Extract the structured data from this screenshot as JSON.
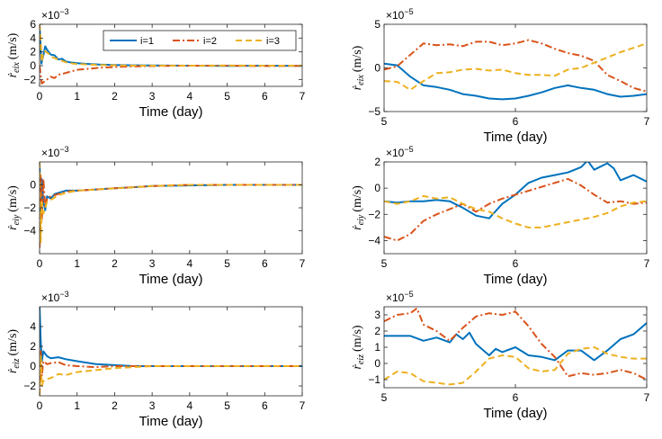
{
  "colors": {
    "i1": "#0072BD",
    "i2": "#D95319",
    "i3": "#EDB120"
  },
  "legend": {
    "position": "top-right",
    "series": [
      "i=1",
      "i=2",
      "i=3"
    ]
  },
  "chart_data": [
    {
      "id": "p1",
      "type": "line",
      "xlabel": "Time (day)",
      "ylabel_main": "ṙ",
      "ylabel_sub": "eix",
      "ylabel_unit": "(m/s)",
      "multiplier": "×10",
      "multiplier_exp": "−3",
      "xlim": [
        0,
        7
      ],
      "ylim": [
        -3,
        6
      ],
      "xticks": [
        0,
        1,
        2,
        3,
        4,
        5,
        6,
        7
      ],
      "xtick_labels": [
        "0",
        "1",
        "2",
        "3",
        "4",
        "5",
        "6",
        "7"
      ],
      "yticks": [
        -2,
        0,
        2,
        4,
        6
      ],
      "ytick_labels": [
        "−2",
        "0",
        "2",
        "4",
        "6"
      ],
      "series": [
        {
          "name": "i=1",
          "style": "solid",
          "x": [
            0,
            0.05,
            0.1,
            0.15,
            0.2,
            0.3,
            0.4,
            0.5,
            0.6,
            0.7,
            0.8,
            1.0,
            1.3,
            1.6,
            2.0,
            2.5,
            3,
            4,
            5,
            6,
            7
          ],
          "y": [
            6,
            0.3,
            1.5,
            2.8,
            2.3,
            1.6,
            1.5,
            0.9,
            1.0,
            0.6,
            0.5,
            0.35,
            0.25,
            0.15,
            0.1,
            0.05,
            0.02,
            0.0,
            -0.02,
            0.0,
            -0.03
          ]
        },
        {
          "name": "i=2",
          "style": "dashdot",
          "x": [
            0,
            0.03,
            0.06,
            0.1,
            0.2,
            0.3,
            0.4,
            0.5,
            0.6,
            0.8,
            1.0,
            1.3,
            1.6,
            2.0,
            2.5,
            3,
            4,
            5,
            6,
            7
          ],
          "y": [
            0,
            -1.5,
            -2.6,
            -2.4,
            -2.0,
            -1.6,
            -1.8,
            -1.3,
            -1.2,
            -0.9,
            -0.6,
            -0.45,
            -0.3,
            -0.2,
            -0.1,
            -0.05,
            0.0,
            0.0,
            -0.05,
            -0.02
          ]
        },
        {
          "name": "i=3",
          "style": "dashed",
          "x": [
            0,
            0.03,
            0.06,
            0.1,
            0.15,
            0.25,
            0.35,
            0.5,
            0.7,
            0.9,
            1.2,
            1.6,
            2.0,
            2.5,
            3,
            4,
            5,
            6,
            7
          ],
          "y": [
            6,
            3.5,
            0.5,
            2.0,
            2.1,
            1.7,
            1.2,
            0.9,
            0.5,
            0.3,
            0.2,
            0.1,
            0.05,
            0.0,
            0.0,
            0.0,
            0.02,
            0.0,
            0.0
          ]
        }
      ]
    },
    {
      "id": "p2",
      "type": "line",
      "xlabel": "Time (day)",
      "ylabel_main": "ṙ",
      "ylabel_sub": "eix",
      "ylabel_unit": "(m/s)",
      "multiplier": "×10",
      "multiplier_exp": "−5",
      "xlim": [
        5,
        7
      ],
      "ylim": [
        -5,
        5
      ],
      "xticks": [
        5,
        6,
        7
      ],
      "xtick_labels": [
        "5",
        "6",
        "7"
      ],
      "yticks": [
        -5,
        0,
        5
      ],
      "ytick_labels": [
        "−5",
        "0",
        "5"
      ],
      "series": [
        {
          "name": "i=1",
          "style": "solid",
          "x": [
            5.0,
            5.1,
            5.2,
            5.3,
            5.4,
            5.5,
            5.6,
            5.7,
            5.8,
            5.9,
            6.0,
            6.1,
            6.2,
            6.3,
            6.4,
            6.5,
            6.6,
            6.7,
            6.8,
            6.9,
            7.0
          ],
          "y": [
            0.5,
            0.3,
            -1.0,
            -2.0,
            -2.2,
            -2.5,
            -3.0,
            -3.2,
            -3.5,
            -3.6,
            -3.5,
            -3.2,
            -2.8,
            -2.3,
            -2.0,
            -2.3,
            -2.5,
            -3.0,
            -3.3,
            -3.2,
            -3.0
          ]
        },
        {
          "name": "i=2",
          "style": "dashdot",
          "x": [
            5.0,
            5.1,
            5.2,
            5.3,
            5.4,
            5.5,
            5.6,
            5.7,
            5.8,
            5.9,
            6.0,
            6.1,
            6.2,
            6.3,
            6.4,
            6.5,
            6.6,
            6.7,
            6.8,
            6.9,
            7.0
          ],
          "y": [
            -0.2,
            0.2,
            1.5,
            2.8,
            2.6,
            2.7,
            2.5,
            3.0,
            3.0,
            2.6,
            2.8,
            3.2,
            2.8,
            2.2,
            1.7,
            1.4,
            0.8,
            -0.8,
            -1.5,
            -2.3,
            -2.7
          ]
        },
        {
          "name": "i=3",
          "style": "dashed",
          "x": [
            5.0,
            5.1,
            5.2,
            5.3,
            5.4,
            5.5,
            5.6,
            5.7,
            5.8,
            5.9,
            6.0,
            6.1,
            6.2,
            6.3,
            6.4,
            6.5,
            6.6,
            6.7,
            6.8,
            6.9,
            7.0
          ],
          "y": [
            -1.5,
            -1.6,
            -2.5,
            -1.5,
            -0.6,
            -0.5,
            -0.2,
            -0.1,
            -0.3,
            -0.2,
            -0.6,
            -0.8,
            -0.8,
            -0.9,
            -0.2,
            0.0,
            0.6,
            1.2,
            1.8,
            2.3,
            2.8
          ]
        }
      ]
    },
    {
      "id": "p3",
      "type": "line",
      "xlabel": "Time (day)",
      "ylabel_main": "ṙ",
      "ylabel_sub": "eiy",
      "ylabel_unit": "(m/s)",
      "multiplier": "×10",
      "multiplier_exp": "−3",
      "xlim": [
        0,
        7
      ],
      "ylim": [
        -6,
        2
      ],
      "xticks": [
        0,
        1,
        2,
        3,
        4,
        5,
        6,
        7
      ],
      "xtick_labels": [
        "0",
        "1",
        "2",
        "3",
        "4",
        "5",
        "6",
        "7"
      ],
      "yticks": [
        -4,
        -2,
        0
      ],
      "ytick_labels": [
        "−4",
        "−2",
        "0"
      ],
      "series": [
        {
          "name": "i=1",
          "style": "solid",
          "x": [
            0,
            0.03,
            0.06,
            0.1,
            0.15,
            0.2,
            0.3,
            0.4,
            0.5,
            0.7,
            1.0,
            1.5,
            2.0,
            2.5,
            3,
            4,
            5,
            6,
            7
          ],
          "y": [
            2.0,
            -2.5,
            0.5,
            -1.5,
            -2.2,
            -1.0,
            -1.2,
            -0.8,
            -0.7,
            -0.5,
            -0.5,
            -0.4,
            -0.3,
            -0.2,
            -0.1,
            -0.05,
            0.0,
            0.0,
            0.0
          ]
        },
        {
          "name": "i=2",
          "style": "dashdot",
          "x": [
            0,
            0.03,
            0.06,
            0.1,
            0.15,
            0.2,
            0.3,
            0.5,
            0.7,
            1.0,
            1.5,
            2.0,
            2.5,
            3,
            4,
            5,
            6,
            7
          ],
          "y": [
            -5.5,
            0.8,
            -3.0,
            0.5,
            -2.0,
            -1.2,
            -1.0,
            -0.8,
            -0.6,
            -0.5,
            -0.4,
            -0.3,
            -0.2,
            -0.1,
            0.0,
            0.0,
            0.0,
            0.0
          ]
        },
        {
          "name": "i=3",
          "style": "dashed",
          "x": [
            0,
            0.03,
            0.06,
            0.1,
            0.2,
            0.3,
            0.5,
            0.7,
            1.0,
            1.5,
            2.0,
            2.5,
            3,
            4,
            5,
            6,
            7
          ],
          "y": [
            2.0,
            -5.0,
            -1.5,
            -2.5,
            -1.5,
            -1.3,
            -0.9,
            -0.7,
            -0.5,
            -0.4,
            -0.3,
            -0.2,
            -0.1,
            0.0,
            0.0,
            0.0,
            0.0
          ]
        }
      ]
    },
    {
      "id": "p4",
      "type": "line",
      "xlabel": "Time (day)",
      "ylabel_main": "ṙ",
      "ylabel_sub": "eiy",
      "ylabel_unit": "(m/s)",
      "multiplier": "×10",
      "multiplier_exp": "−5",
      "xlim": [
        5,
        7
      ],
      "ylim": [
        -5,
        2
      ],
      "xticks": [
        5,
        6,
        7
      ],
      "xtick_labels": [
        "5",
        "6",
        "7"
      ],
      "yticks": [
        -4,
        -2,
        0,
        2
      ],
      "ytick_labels": [
        "−4",
        "−2",
        "0",
        "2"
      ],
      "series": [
        {
          "name": "i=1",
          "style": "solid",
          "x": [
            5.0,
            5.1,
            5.2,
            5.3,
            5.4,
            5.5,
            5.6,
            5.7,
            5.8,
            5.9,
            6.0,
            6.1,
            6.2,
            6.3,
            6.4,
            6.5,
            6.55,
            6.6,
            6.7,
            6.75,
            6.8,
            6.9,
            7.0
          ],
          "y": [
            -1.0,
            -1.1,
            -1.0,
            -1.0,
            -0.9,
            -1.0,
            -1.5,
            -2.1,
            -2.3,
            -1.2,
            -0.5,
            0.4,
            0.8,
            1.0,
            1.2,
            1.6,
            2.1,
            1.4,
            1.9,
            1.5,
            0.6,
            1.0,
            0.5
          ]
        },
        {
          "name": "i=2",
          "style": "dashdot",
          "x": [
            5.0,
            5.1,
            5.2,
            5.3,
            5.4,
            5.5,
            5.6,
            5.7,
            5.8,
            5.9,
            6.0,
            6.1,
            6.2,
            6.3,
            6.4,
            6.5,
            6.6,
            6.7,
            6.8,
            6.9,
            7.0
          ],
          "y": [
            -3.7,
            -4.0,
            -3.5,
            -2.5,
            -2.0,
            -1.6,
            -1.2,
            -1.8,
            -1.2,
            -0.8,
            -0.5,
            -0.2,
            0.1,
            0.4,
            0.7,
            0.2,
            -0.5,
            -1.1,
            -1.0,
            -1.2,
            -1.1
          ]
        },
        {
          "name": "i=3",
          "style": "dashed",
          "x": [
            5.0,
            5.1,
            5.2,
            5.3,
            5.4,
            5.5,
            5.6,
            5.7,
            5.8,
            5.9,
            6.0,
            6.1,
            6.2,
            6.3,
            6.4,
            6.5,
            6.6,
            6.7,
            6.8,
            6.9,
            7.0
          ],
          "y": [
            -1.0,
            -1.2,
            -1.0,
            -0.6,
            -0.8,
            -0.7,
            -1.2,
            -1.6,
            -1.8,
            -2.3,
            -2.7,
            -3.0,
            -3.0,
            -2.8,
            -2.6,
            -2.4,
            -2.2,
            -1.9,
            -1.4,
            -1.1,
            -1.0
          ]
        }
      ]
    },
    {
      "id": "p5",
      "type": "line",
      "xlabel": "Time (day)",
      "ylabel_main": "ṙ",
      "ylabel_sub": "eiz",
      "ylabel_unit": "(m/s)",
      "multiplier": "×10",
      "multiplier_exp": "−3",
      "xlim": [
        0,
        7
      ],
      "ylim": [
        -3,
        6
      ],
      "xticks": [
        0,
        1,
        2,
        3,
        4,
        5,
        6,
        7
      ],
      "xtick_labels": [
        "0",
        "1",
        "2",
        "3",
        "4",
        "5",
        "6",
        "7"
      ],
      "yticks": [
        -2,
        0,
        2,
        4
      ],
      "ytick_labels": [
        "−2",
        "0",
        "2",
        "4"
      ],
      "series": [
        {
          "name": "i=1",
          "style": "solid",
          "x": [
            0,
            0.03,
            0.06,
            0.1,
            0.2,
            0.3,
            0.5,
            0.7,
            1.0,
            1.5,
            2.0,
            2.5,
            3,
            4,
            5,
            6,
            7
          ],
          "y": [
            6.0,
            2.5,
            0.5,
            1.5,
            1.0,
            0.8,
            0.9,
            0.7,
            0.5,
            0.2,
            0.1,
            0.0,
            0.0,
            0.0,
            0.0,
            0.0,
            0.0
          ]
        },
        {
          "name": "i=2",
          "style": "dashdot",
          "x": [
            0,
            0.03,
            0.06,
            0.1,
            0.2,
            0.3,
            0.5,
            0.7,
            1.0,
            1.5,
            2.0,
            3,
            4,
            5,
            6,
            7
          ],
          "y": [
            -3.0,
            1.5,
            -1.0,
            0.5,
            0.2,
            0.3,
            0.4,
            0.1,
            0.0,
            -0.1,
            0.0,
            0.0,
            0.0,
            0.0,
            0.0,
            0.0
          ]
        },
        {
          "name": "i=3",
          "style": "dashed",
          "x": [
            0,
            0.03,
            0.06,
            0.1,
            0.2,
            0.3,
            0.5,
            0.7,
            1.0,
            1.5,
            2.0,
            2.5,
            3,
            4,
            5,
            6,
            7
          ],
          "y": [
            -3.0,
            1.0,
            -2.0,
            -1.5,
            -1.3,
            -1.2,
            -0.8,
            -0.9,
            -0.6,
            -0.4,
            -0.2,
            -0.1,
            0.0,
            0.0,
            0.0,
            0.0,
            0.0
          ]
        }
      ]
    },
    {
      "id": "p6",
      "type": "line",
      "xlabel": "Time (day)",
      "ylabel_main": "ṙ",
      "ylabel_sub": "eiz",
      "ylabel_unit": "(m/s)",
      "multiplier": "×10",
      "multiplier_exp": "−5",
      "xlim": [
        5,
        7
      ],
      "ylim": [
        -1.5,
        3.5
      ],
      "xticks": [
        5,
        6,
        7
      ],
      "xtick_labels": [
        "5",
        "6",
        "7"
      ],
      "yticks": [
        -1,
        0,
        1,
        2,
        3
      ],
      "ytick_labels": [
        "−1",
        "0",
        "1",
        "2",
        "3"
      ],
      "series": [
        {
          "name": "i=1",
          "style": "solid",
          "x": [
            5.0,
            5.1,
            5.2,
            5.3,
            5.4,
            5.5,
            5.55,
            5.6,
            5.65,
            5.7,
            5.8,
            5.85,
            5.9,
            6.0,
            6.1,
            6.2,
            6.3,
            6.4,
            6.5,
            6.6,
            6.7,
            6.8,
            6.9,
            7.0
          ],
          "y": [
            1.7,
            1.7,
            1.7,
            1.4,
            1.6,
            1.3,
            1.8,
            1.5,
            1.9,
            1.2,
            0.5,
            0.9,
            0.7,
            1.0,
            0.5,
            0.4,
            0.2,
            0.8,
            0.8,
            0.2,
            0.8,
            1.5,
            1.8,
            2.5
          ]
        },
        {
          "name": "i=2",
          "style": "dashdot",
          "x": [
            5.0,
            5.1,
            5.2,
            5.25,
            5.3,
            5.4,
            5.5,
            5.6,
            5.7,
            5.8,
            5.9,
            6.0,
            6.1,
            6.2,
            6.3,
            6.4,
            6.5,
            6.6,
            6.7,
            6.8,
            6.9,
            7.0
          ],
          "y": [
            2.6,
            3.0,
            3.1,
            3.4,
            2.4,
            2.0,
            1.4,
            2.2,
            2.9,
            3.1,
            3.0,
            3.2,
            2.3,
            1.2,
            0.4,
            -0.8,
            -0.6,
            -0.7,
            -0.6,
            -0.4,
            -0.6,
            -1.0
          ]
        },
        {
          "name": "i=3",
          "style": "dashed",
          "x": [
            5.0,
            5.1,
            5.2,
            5.3,
            5.4,
            5.5,
            5.6,
            5.7,
            5.8,
            5.9,
            6.0,
            6.1,
            6.2,
            6.3,
            6.4,
            6.5,
            6.6,
            6.7,
            6.8,
            6.9,
            7.0
          ],
          "y": [
            -1.0,
            -0.5,
            -0.6,
            -1.1,
            -1.2,
            -1.3,
            -1.2,
            -0.5,
            0.3,
            0.5,
            0.4,
            -0.3,
            -0.5,
            -0.4,
            0.6,
            0.9,
            1.0,
            0.6,
            0.4,
            0.3,
            0.3
          ]
        }
      ]
    }
  ]
}
